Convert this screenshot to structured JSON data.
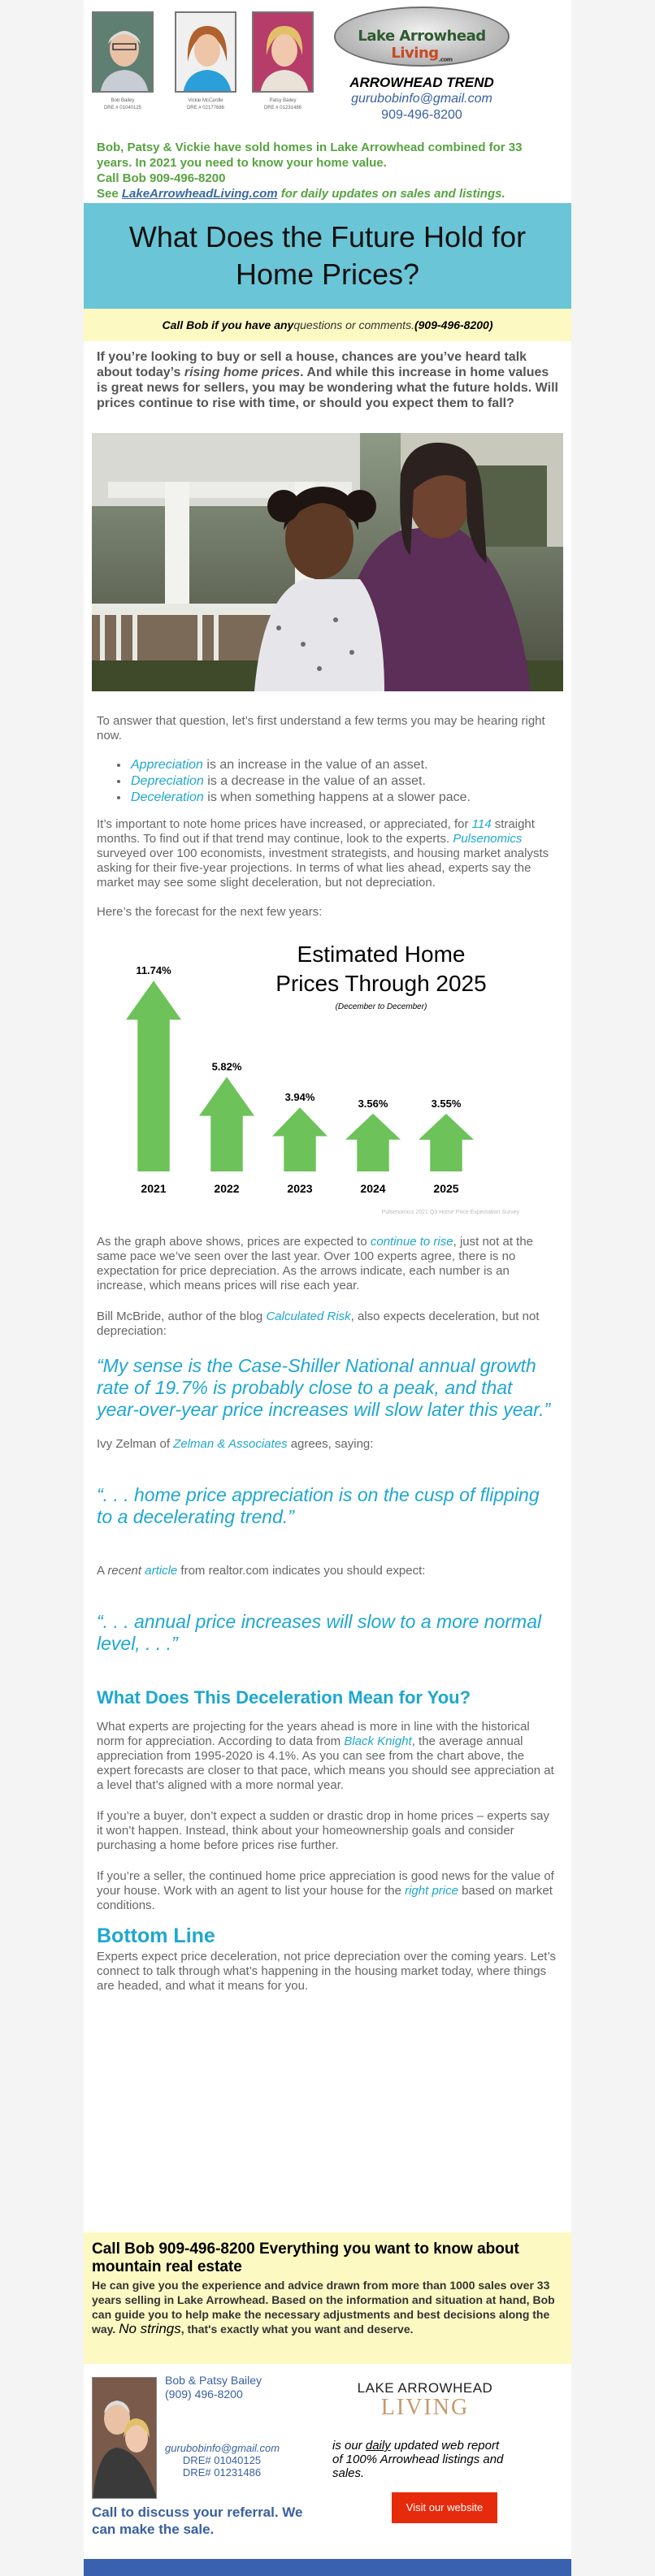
{
  "agents": [
    {
      "name": "Bob Bailey",
      "dre": "DRE # 01040125"
    },
    {
      "name": "Vickie McCardle",
      "dre": "DRE # 02177686"
    },
    {
      "name": "Patsy Bailey",
      "dre": "DRE # 01231486"
    }
  ],
  "logo": {
    "part1": "Lake Arrowhead ",
    "part2": "Living",
    "suffix": ".com"
  },
  "trend": {
    "title": "ARROWHEAD TREND",
    "email": "gurubobinfo@gmail.com",
    "phone": "909-496-8200"
  },
  "intro": {
    "line1": "Bob, Patsy & Vickie have sold homes in Lake Arrowhead combined for 33 years. In 2021 you need to know your home value.",
    "line2": "Call Bob 909-496-8200",
    "see": "See ",
    "site": "LakeArrowheadLiving.com",
    "after": " for daily updates on sales and listings."
  },
  "banner_title": "What Does the Future Hold for Home Prices?",
  "callbar": {
    "a": "Call Bob if you have any ",
    "b": "questions or comments.",
    "c": "(909-496-8200)"
  },
  "lead": {
    "a": "If you’re looking to buy or sell a house, chances are you’ve heard talk about today’s ",
    "b": "rising home prices",
    "c": ". And while this increase in home values is great news for sellers, you may be wondering what the future holds. Will prices continue to rise with time, or should you expect them to fall?"
  },
  "para1": "To answer that question, let’s first understand a few terms you may be hearing right now.",
  "terms": [
    {
      "term": "Appreciation",
      "def": " is an increase in the value of an asset."
    },
    {
      "term": "Depreciation",
      "def": " is a decrease in the value of an asset."
    },
    {
      "term": "Deceleration",
      "def": " is when something happens at a slower pace."
    }
  ],
  "para2": {
    "a": "It’s important to note home prices have increased, or appreciated, for ",
    "b": "114",
    "c": " straight months. To find out if that trend may continue, look to the experts. ",
    "d": "Pulsenomics",
    "e": " surveyed over 100 economists, investment strategists, and housing market analysts asking for their five-year projections. In terms of what lies ahead, experts say the market may see some slight deceleration, but not depreciation."
  },
  "para3": "Here’s the forecast for the next few years:",
  "chart_data": {
    "type": "bar",
    "title": "Estimated Home Prices Through 2025",
    "subtitle": "(December to December)",
    "categories": [
      "2021",
      "2022",
      "2023",
      "2024",
      "2025"
    ],
    "values": [
      11.74,
      5.82,
      3.94,
      3.56,
      3.55
    ],
    "labels": [
      "11.74%",
      "5.82%",
      "3.94%",
      "3.56%",
      "3.55%"
    ],
    "source": "Pulsenomics 2021 Q3 Home Price Expectation Survey",
    "color": "#6dc25a",
    "ylim": [
      0,
      12.5
    ]
  },
  "para4": {
    "a": "As the graph above shows, prices are expected to ",
    "b": "continue to rise",
    "c": ", just not at the same pace we’ve seen over the last year. Over 100 experts agree, there is no expectation for price depreciation. As the arrows indicate, each number is an increase, which means prices will rise each year."
  },
  "para5": {
    "a": "Bill McBride, author of the blog ",
    "b": "Calculated Risk",
    "c": ", also expects deceleration, but not depreciation:"
  },
  "quote1": "“My sense is the Case-Shiller National annual growth rate of 19.7% is probably close to a peak, and that year-over-year price increases will slow later this year.”",
  "para6": {
    "a": "Ivy Zelman of ",
    "b": "Zelman & Associates",
    "c": " agrees, saying:"
  },
  "quote2": "“. . . home price appreciation is on the cusp of flipping to a decelerating trend.”",
  "para7": {
    "a": "A ",
    "b": "recent",
    "c": " ",
    "d": "article",
    "e": " from realtor.com indicates you should expect:"
  },
  "quote3": "“. . . annual price increases will slow to a more normal level, . . .”",
  "heading1": "What Does This Deceleration Mean for You?",
  "para8": {
    "a": "What experts are projecting for the years ahead is more in line with the historical norm for appreciation. According to data from ",
    "b": "Black Knight",
    "c": ", the average annual appreciation from 1995-2020 is 4.1%. As you can see from the chart above, the expert forecasts are closer to that pace, which means you should see appreciation at a level that’s aligned with a more normal year."
  },
  "para9": "If you’re a buyer, don’t expect a sudden or drastic drop in home prices – experts say it won’t happen. Instead, think about your homeownership goals and consider purchasing a home before prices rise further.",
  "para10": {
    "a": "If you’re a seller, the continued home price appreciation is good news for the value of your house. Work with an agent to list your house for the ",
    "b": "right price",
    "c": " based on market conditions."
  },
  "heading2": "Bottom Line",
  "para11": "Experts expect price deceleration, not price depreciation over the coming years. Let’s connect to talk through what’s happening in the housing market today, where things are headed, and what it means for you.",
  "bottom": {
    "headline": "Call Bob  909-496-8200   Everything you want to know about mountain real estate",
    "body": "He can give you the experience and advice drawn from more than 1000 sales over 33 years selling in Lake Arrowhead. Based on the information and situation at hand, Bob can guide you to help make the necessary adjustments and best decisions along the way. ",
    "no_strings": "No strings",
    "end": ", that's exactly what you want and deserve."
  },
  "footer": {
    "names": "Bob & Patsy Bailey",
    "phone": "(909) 496-8200",
    "email": "gurubobinfo@gmail.com",
    "dre1": "DRE# 01040125",
    "dre2": "DRE# 01231486",
    "referral": "Call to discuss your referral. We can make the sale.",
    "logo_top": "LAKE ARROWHEAD",
    "logo_bottom": "LIVING",
    "report_a": "is our ",
    "report_b": "daily",
    "report_c": " updated web report of 100% Arrowhead listings and sales.",
    "button": "Visit our website"
  }
}
